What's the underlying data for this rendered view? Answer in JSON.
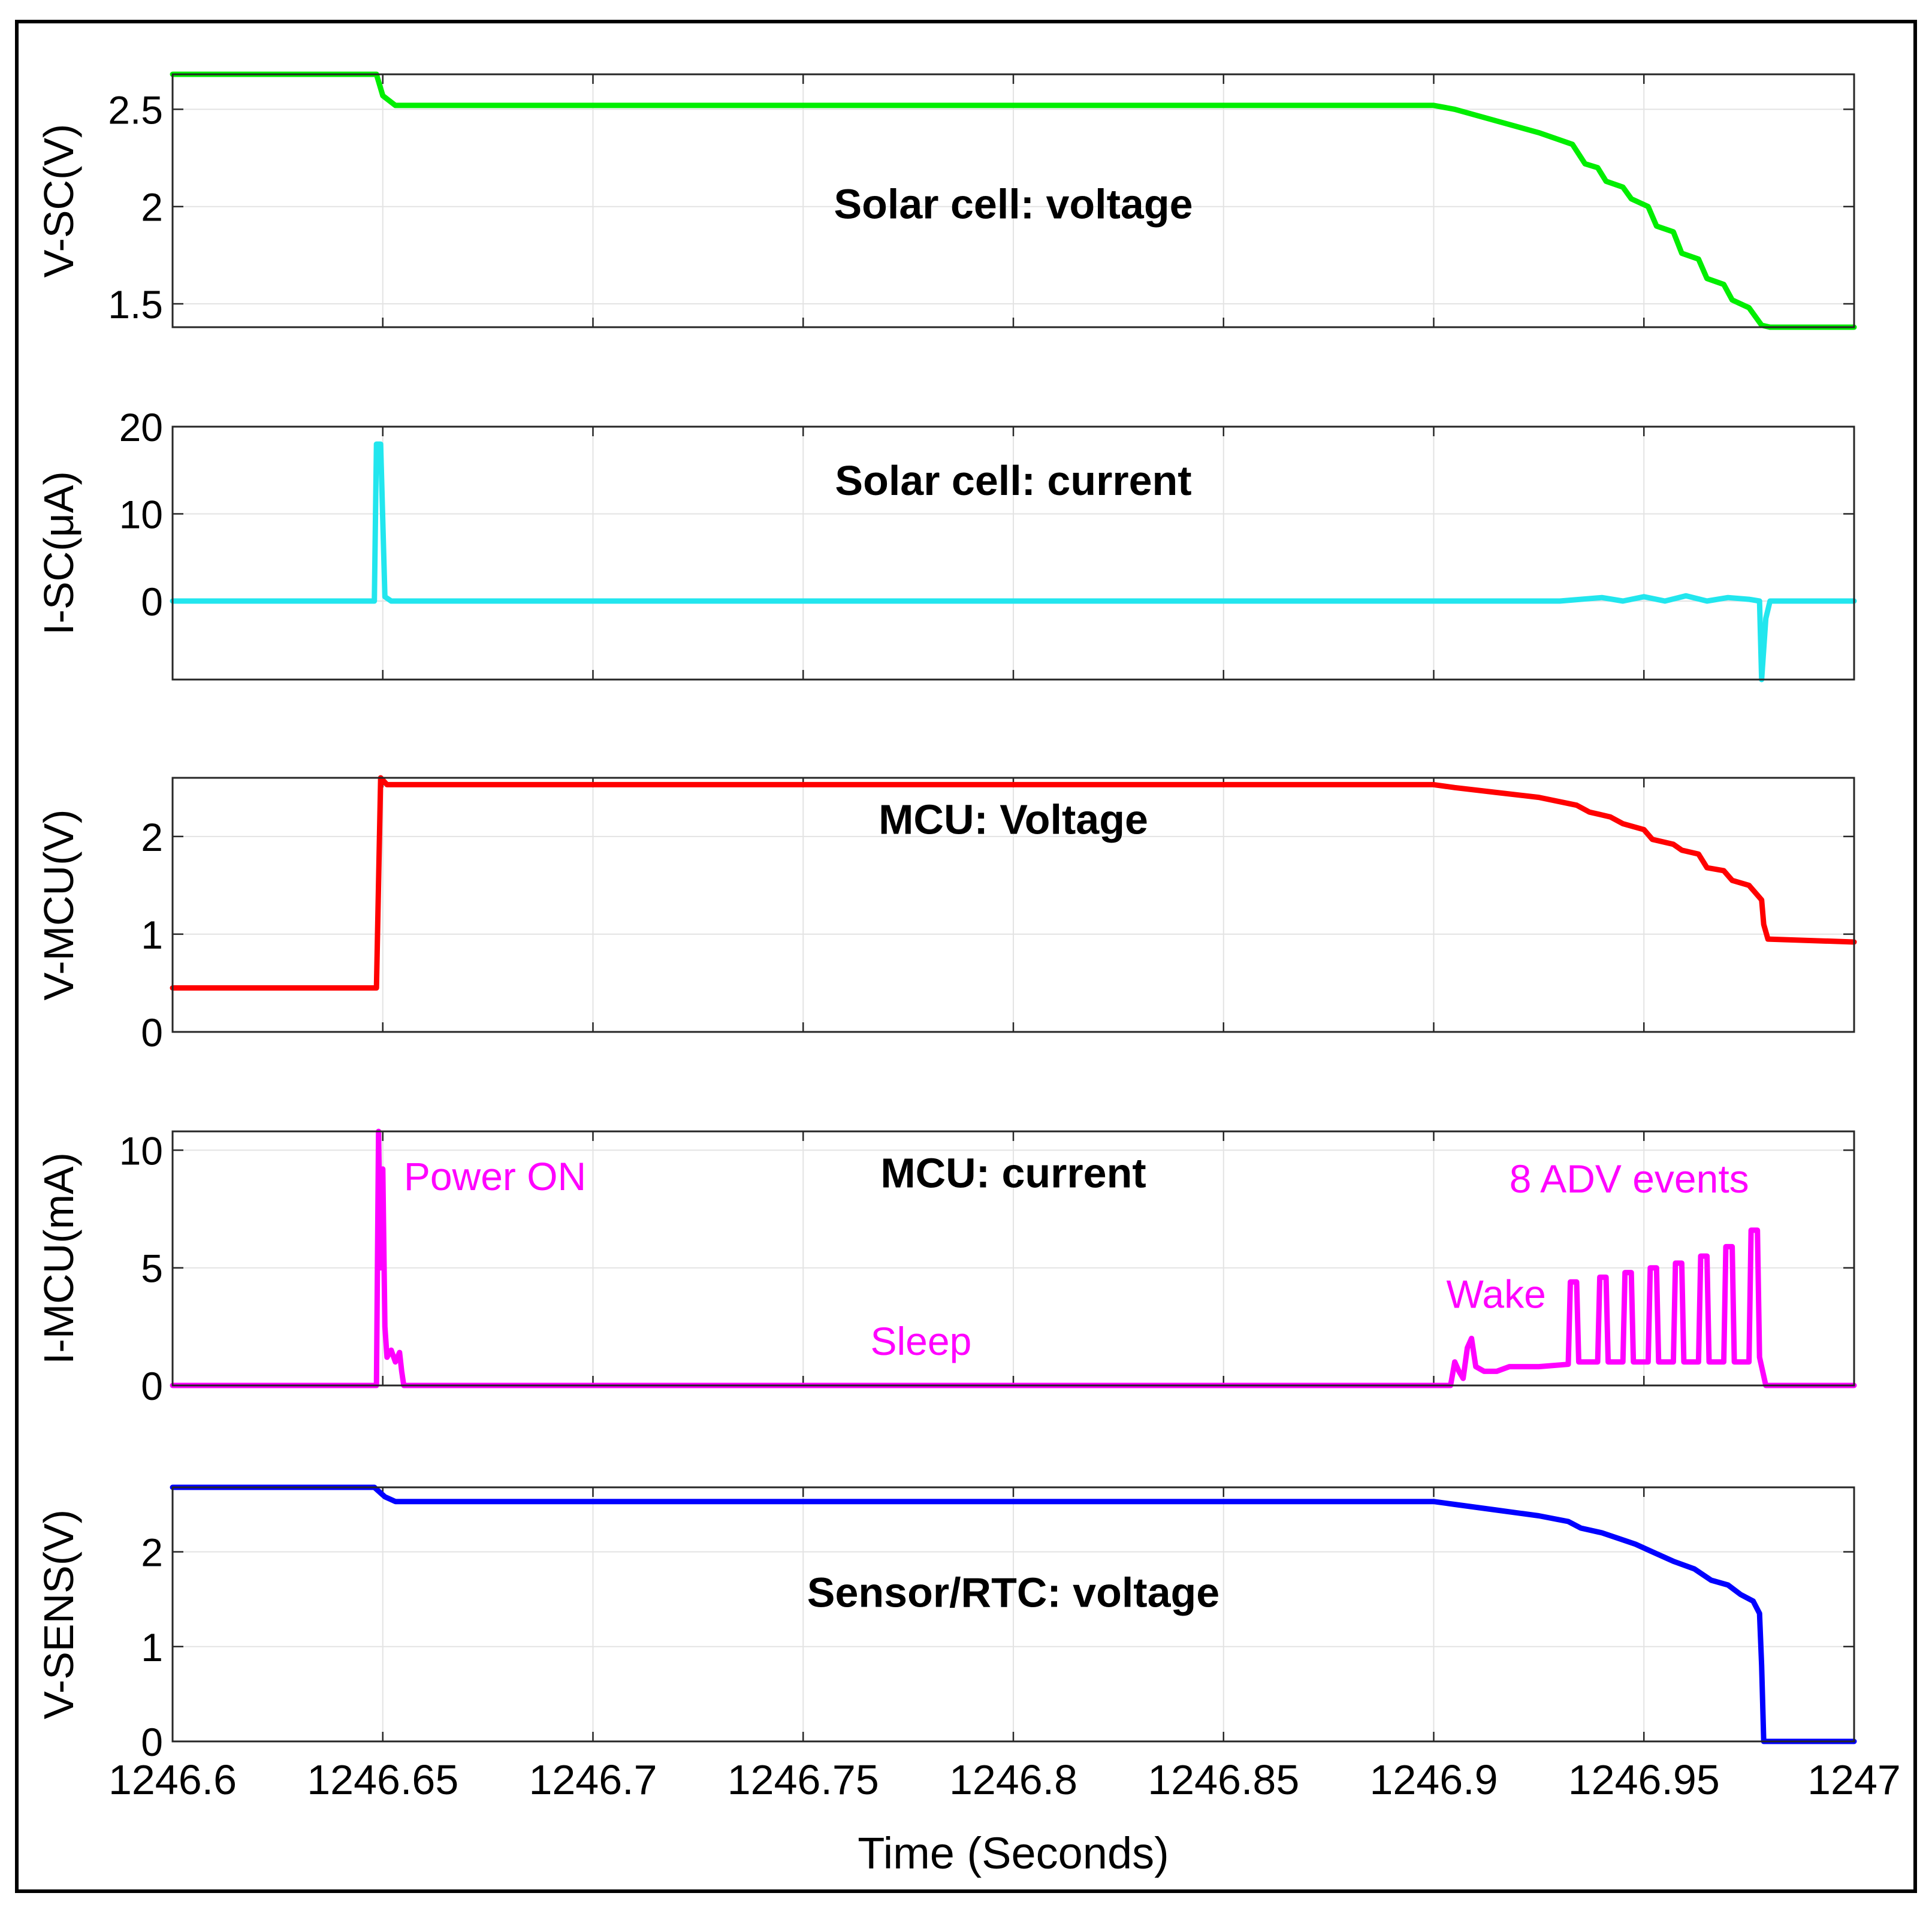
{
  "chart_data": {
    "type": "line",
    "x_label": "Time (Seconds)",
    "x_range": [
      1246.6,
      1247
    ],
    "x_ticks": [
      1246.6,
      1246.65,
      1246.7,
      1246.75,
      1246.8,
      1246.85,
      1246.9,
      1246.95,
      1247
    ],
    "x_tick_labels": [
      "1246.6",
      "1246.65",
      "1246.7",
      "1246.75",
      "1246.8",
      "1246.85",
      "1246.9",
      "1246.95",
      "1247"
    ],
    "grid": true,
    "panels": [
      {
        "id": "vsc",
        "title": "Solar cell: voltage",
        "ylabel": "V-SC(V)",
        "ylim": [
          1.38,
          2.68
        ],
        "yticks": [
          1.5,
          2,
          2.5
        ],
        "ytick_labels": [
          "1.5",
          "2",
          "2.5"
        ],
        "color": "#00ee00",
        "series": [
          [
            1246.6,
            2.68
          ],
          [
            1246.6485,
            2.68
          ],
          [
            1246.65,
            2.57
          ],
          [
            1246.653,
            2.52
          ],
          [
            1246.85,
            2.52
          ],
          [
            1246.9,
            2.52
          ],
          [
            1246.905,
            2.5
          ],
          [
            1246.915,
            2.44
          ],
          [
            1246.925,
            2.38
          ],
          [
            1246.933,
            2.32
          ],
          [
            1246.936,
            2.22
          ],
          [
            1246.939,
            2.2
          ],
          [
            1246.941,
            2.13
          ],
          [
            1246.945,
            2.1
          ],
          [
            1246.947,
            2.04
          ],
          [
            1246.951,
            2.0
          ],
          [
            1246.953,
            1.9
          ],
          [
            1246.957,
            1.87
          ],
          [
            1246.959,
            1.76
          ],
          [
            1246.963,
            1.73
          ],
          [
            1246.965,
            1.63
          ],
          [
            1246.969,
            1.6
          ],
          [
            1246.971,
            1.52
          ],
          [
            1246.975,
            1.48
          ],
          [
            1246.978,
            1.39
          ],
          [
            1246.98,
            1.38
          ],
          [
            1247,
            1.38
          ]
        ]
      },
      {
        "id": "isc",
        "title": "Solar cell: current",
        "ylabel": "I-SC(μA)",
        "ylim": [
          -9,
          20
        ],
        "yticks": [
          0,
          10,
          20
        ],
        "ytick_labels": [
          "0",
          "10",
          "20"
        ],
        "color": "#22e6ee",
        "series": [
          [
            1246.6,
            0
          ],
          [
            1246.648,
            0
          ],
          [
            1246.6485,
            18
          ],
          [
            1246.6495,
            18
          ],
          [
            1246.6505,
            0.5
          ],
          [
            1246.652,
            0
          ],
          [
            1246.93,
            0
          ],
          [
            1246.94,
            0.4
          ],
          [
            1246.945,
            0
          ],
          [
            1246.95,
            0.5
          ],
          [
            1246.955,
            0
          ],
          [
            1246.96,
            0.6
          ],
          [
            1246.965,
            0
          ],
          [
            1246.97,
            0.4
          ],
          [
            1246.975,
            0.2
          ],
          [
            1246.9775,
            0
          ],
          [
            1246.978,
            -9
          ],
          [
            1246.979,
            -2
          ],
          [
            1246.98,
            0
          ],
          [
            1247,
            0
          ]
        ]
      },
      {
        "id": "vmcu",
        "title": "MCU: Voltage",
        "ylabel": "V-MCU(V)",
        "ylim": [
          0,
          2.6
        ],
        "yticks": [
          0,
          1,
          2
        ],
        "ytick_labels": [
          "0",
          "1",
          "2"
        ],
        "color": "#ff0000",
        "series": [
          [
            1246.6,
            0.45
          ],
          [
            1246.6485,
            0.45
          ],
          [
            1246.6495,
            2.6
          ],
          [
            1246.651,
            2.53
          ],
          [
            1246.9,
            2.53
          ],
          [
            1246.905,
            2.5
          ],
          [
            1246.915,
            2.45
          ],
          [
            1246.925,
            2.4
          ],
          [
            1246.934,
            2.32
          ],
          [
            1246.937,
            2.25
          ],
          [
            1246.942,
            2.2
          ],
          [
            1246.945,
            2.13
          ],
          [
            1246.95,
            2.07
          ],
          [
            1246.952,
            1.97
          ],
          [
            1246.957,
            1.92
          ],
          [
            1246.959,
            1.86
          ],
          [
            1246.963,
            1.82
          ],
          [
            1246.965,
            1.68
          ],
          [
            1246.969,
            1.65
          ],
          [
            1246.971,
            1.55
          ],
          [
            1246.975,
            1.5
          ],
          [
            1246.977,
            1.4
          ],
          [
            1246.978,
            1.35
          ],
          [
            1246.9785,
            1.1
          ],
          [
            1246.9795,
            0.95
          ],
          [
            1247,
            0.92
          ]
        ]
      },
      {
        "id": "imcu",
        "title": "MCU: current",
        "ylabel": "I-MCU(mA)",
        "ylim": [
          0,
          10.8
        ],
        "yticks": [
          0,
          5,
          10
        ],
        "ytick_labels": [
          "0",
          "5",
          "10"
        ],
        "color": "#ff00ff",
        "series": [
          [
            1246.6,
            0
          ],
          [
            1246.6485,
            0
          ],
          [
            1246.649,
            10.8
          ],
          [
            1246.6495,
            5
          ],
          [
            1246.65,
            9.2
          ],
          [
            1246.6505,
            2.5
          ],
          [
            1246.651,
            1.2
          ],
          [
            1246.652,
            1.5
          ],
          [
            1246.653,
            1.0
          ],
          [
            1246.654,
            1.4
          ],
          [
            1246.6545,
            0.6
          ],
          [
            1246.655,
            0
          ],
          [
            1246.904,
            0
          ],
          [
            1246.905,
            1.0
          ],
          [
            1246.906,
            0.6
          ],
          [
            1246.907,
            0.3
          ],
          [
            1246.908,
            1.6
          ],
          [
            1246.909,
            2.0
          ],
          [
            1246.91,
            0.8
          ],
          [
            1246.912,
            0.6
          ],
          [
            1246.915,
            0.6
          ],
          [
            1246.918,
            0.8
          ],
          [
            1246.925,
            0.8
          ],
          [
            1246.932,
            0.9
          ],
          [
            1246.9325,
            4.4
          ],
          [
            1246.934,
            4.4
          ],
          [
            1246.9345,
            1
          ],
          [
            1246.939,
            1
          ],
          [
            1246.9395,
            4.6
          ],
          [
            1246.941,
            4.6
          ],
          [
            1246.9415,
            1
          ],
          [
            1246.945,
            1
          ],
          [
            1246.9455,
            4.8
          ],
          [
            1246.947,
            4.8
          ],
          [
            1246.9475,
            1
          ],
          [
            1246.951,
            1
          ],
          [
            1246.9515,
            5.0
          ],
          [
            1246.953,
            5.0
          ],
          [
            1246.9535,
            1
          ],
          [
            1246.957,
            1
          ],
          [
            1246.9575,
            5.2
          ],
          [
            1246.959,
            5.2
          ],
          [
            1246.9595,
            1
          ],
          [
            1246.963,
            1
          ],
          [
            1246.9635,
            5.5
          ],
          [
            1246.965,
            5.5
          ],
          [
            1246.9655,
            1
          ],
          [
            1246.969,
            1
          ],
          [
            1246.9695,
            5.9
          ],
          [
            1246.971,
            5.9
          ],
          [
            1246.9715,
            1
          ],
          [
            1246.975,
            1
          ],
          [
            1246.9755,
            6.6
          ],
          [
            1246.977,
            6.6
          ],
          [
            1246.9775,
            1.2
          ],
          [
            1246.978,
            0.8
          ],
          [
            1246.979,
            0
          ],
          [
            1247,
            0
          ]
        ],
        "annotations": [
          {
            "text": "Power ON",
            "x": 1246.655,
            "y": 8.3
          },
          {
            "text": "8 ADV events",
            "x": 1246.918,
            "y": 8.2
          },
          {
            "text": "Wake",
            "x": 1246.903,
            "y": 3.3
          },
          {
            "text": "Sleep",
            "x": 1246.766,
            "y": 1.3
          }
        ]
      },
      {
        "id": "vsens",
        "title": "Sensor/RTC: voltage",
        "ylabel": "V-SENS(V)",
        "ylim": [
          0,
          2.68
        ],
        "yticks": [
          0,
          1,
          2
        ],
        "ytick_labels": [
          "0",
          "1",
          "2"
        ],
        "color": "#0000ff",
        "series": [
          [
            1246.6,
            2.68
          ],
          [
            1246.648,
            2.68
          ],
          [
            1246.6505,
            2.58
          ],
          [
            1246.653,
            2.53
          ],
          [
            1246.9,
            2.53
          ],
          [
            1246.905,
            2.5
          ],
          [
            1246.915,
            2.44
          ],
          [
            1246.925,
            2.38
          ],
          [
            1246.932,
            2.32
          ],
          [
            1246.935,
            2.25
          ],
          [
            1246.94,
            2.2
          ],
          [
            1246.944,
            2.14
          ],
          [
            1246.948,
            2.08
          ],
          [
            1246.952,
            2.0
          ],
          [
            1246.957,
            1.9
          ],
          [
            1246.962,
            1.82
          ],
          [
            1246.966,
            1.7
          ],
          [
            1246.97,
            1.65
          ],
          [
            1246.973,
            1.55
          ],
          [
            1246.976,
            1.48
          ],
          [
            1246.9775,
            1.35
          ],
          [
            1246.978,
            0.8
          ],
          [
            1246.9785,
            0
          ],
          [
            1247,
            0
          ]
        ]
      }
    ]
  }
}
